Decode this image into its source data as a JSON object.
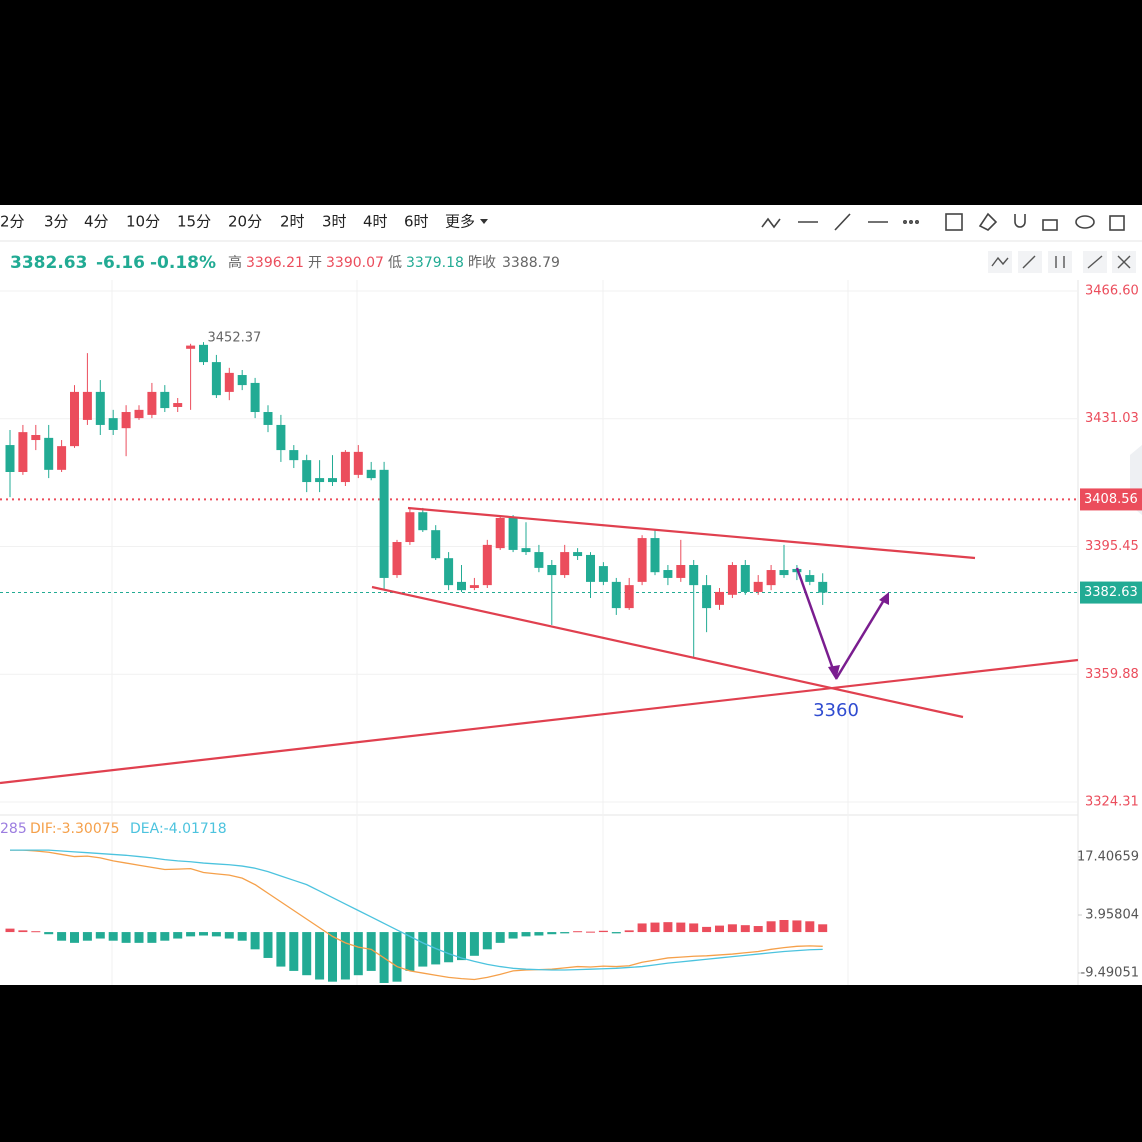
{
  "toolbar": {
    "intervals": [
      "2分",
      "3分",
      "4分",
      "10分",
      "15分",
      "20分",
      "2时",
      "3时",
      "4时",
      "6时",
      "更多"
    ]
  },
  "quote": {
    "price": "3382.63",
    "change": "-6.16",
    "percent": "-0.18%",
    "high_label": "高",
    "high": "3396.21",
    "open_label": "开",
    "open": "3390.07",
    "low_label": "低",
    "low": "3379.18",
    "prev_label": "昨收",
    "prev": "3388.79"
  },
  "chart_data": [
    {
      "type": "candlestick",
      "up_color": "#eb4d5c",
      "down_color": "#22ab94",
      "ylim": [
        3320.69,
        3469.66
      ],
      "yticks": [
        {
          "value": 3466.6,
          "label": "3466.60"
        },
        3431.03,
        3395.45,
        3359.88,
        3324.31
      ],
      "grid": true,
      "markers": [
        {
          "value": 3408.56,
          "color": "#eb4d5c"
        },
        {
          "value": 3382.63,
          "color": "#22ab94"
        }
      ],
      "annotation": "3360",
      "open": [
        3423.7,
        3416.2,
        3425.1,
        3425.7,
        3416.8,
        3423.4,
        3430.7,
        3438.5,
        3431.2,
        3428.4,
        3431.2,
        3432.1,
        3438.5,
        3434.3,
        3450.5,
        3451.6,
        3446.8,
        3438.5,
        3443.2,
        3441.0,
        3432.9,
        3429.3,
        3422.3,
        3419.5,
        3414.5,
        3414.5,
        3413.4,
        3415.4,
        3416.8,
        3416.8,
        3387.5,
        3396.7,
        3405.0,
        3400.0,
        3392.2,
        3385.6,
        3383.9,
        3384.7,
        3395.0,
        3403.4,
        3395.0,
        3393.9,
        3390.3,
        3387.5,
        3393.9,
        3393.1,
        3390.0,
        3385.6,
        3378.3,
        3385.6,
        3397.8,
        3388.9,
        3386.7,
        3390.3,
        3384.7,
        3379.2,
        3382.0,
        3390.3,
        3382.8,
        3384.7,
        3388.9,
        3389.2,
        3387.5,
        3385.6
      ],
      "high": [
        3427.9,
        3429.3,
        3429.3,
        3429.3,
        3425.1,
        3440.4,
        3449.3,
        3441.8,
        3433.5,
        3434.8,
        3434.8,
        3441.0,
        3440.4,
        3436.8,
        3451.9,
        3452.37,
        3448.8,
        3445.2,
        3444.6,
        3442.4,
        3434.8,
        3432.1,
        3423.7,
        3421.0,
        3419.5,
        3420.9,
        3422.3,
        3423.7,
        3419.0,
        3419.0,
        3397.3,
        3406.2,
        3406.2,
        3401.4,
        3393.9,
        3390.3,
        3386.7,
        3397.3,
        3404.2,
        3404.2,
        3402.2,
        3395.9,
        3391.7,
        3395.9,
        3395.0,
        3393.9,
        3391.1,
        3386.7,
        3386.7,
        3398.6,
        3400.0,
        3390.3,
        3397.3,
        3391.7,
        3387.5,
        3383.9,
        3391.1,
        3391.7,
        3387.5,
        3390.3,
        3395.9,
        3390.3,
        3388.9,
        3388.0
      ],
      "low": [
        3409.2,
        3415.4,
        3422.3,
        3414.5,
        3416.2,
        3422.9,
        3429.3,
        3426.5,
        3426.5,
        3420.6,
        3430.7,
        3431.2,
        3432.9,
        3432.9,
        3433.5,
        3446.0,
        3436.8,
        3436.2,
        3439.0,
        3431.2,
        3427.3,
        3419.0,
        3417.3,
        3410.6,
        3410.6,
        3412.3,
        3412.3,
        3414.5,
        3413.9,
        3383.3,
        3386.7,
        3395.9,
        3399.5,
        3391.7,
        3383.3,
        3382.8,
        3383.3,
        3383.9,
        3394.5,
        3393.9,
        3393.1,
        3388.3,
        3373.6,
        3386.7,
        3391.7,
        3381.1,
        3384.7,
        3376.4,
        3377.8,
        3384.7,
        3387.5,
        3384.7,
        3385.6,
        3364.4,
        3371.6,
        3377.8,
        3381.1,
        3382.0,
        3382.0,
        3383.3,
        3386.7,
        3386.1,
        3384.7,
        3379.18
      ],
      "close": [
        3416.2,
        3427.3,
        3426.5,
        3416.8,
        3423.4,
        3438.5,
        3438.5,
        3429.3,
        3427.9,
        3432.9,
        3433.5,
        3438.5,
        3434.0,
        3435.4,
        3451.4,
        3446.8,
        3437.6,
        3443.8,
        3440.4,
        3432.9,
        3429.3,
        3422.3,
        3419.5,
        3413.4,
        3413.4,
        3413.4,
        3421.8,
        3421.8,
        3414.5,
        3386.7,
        3396.7,
        3405.0,
        3400.0,
        3392.2,
        3384.7,
        3383.3,
        3384.7,
        3395.9,
        3403.4,
        3394.5,
        3393.9,
        3389.5,
        3387.5,
        3393.9,
        3392.8,
        3385.6,
        3385.6,
        3378.3,
        3384.7,
        3397.8,
        3388.3,
        3386.7,
        3390.3,
        3384.7,
        3378.3,
        3382.8,
        3390.3,
        3382.8,
        3385.6,
        3388.9,
        3387.5,
        3388.3,
        3385.6,
        3382.63
      ]
    },
    {
      "type": "macd",
      "ylim": [
        -12.27,
        27.14
      ],
      "yticks": [
        17.40659,
        3.95804,
        -9.49051
      ],
      "legend_labels": [
        "285",
        "DIF:-3.30075",
        "DEA:-4.01718"
      ],
      "legend_colors": [
        "#9c7de0",
        "#f5a04a",
        "#4cc3de"
      ],
      "up_color": "#eb4d5c",
      "down_color": "#22ab94",
      "histogram": [
        0.8,
        0.4,
        0.2,
        -0.5,
        -2,
        -2.5,
        -2,
        -1.5,
        -2,
        -2.5,
        -2.5,
        -2.5,
        -2,
        -1.5,
        -1,
        -0.8,
        -1,
        -1.5,
        -2,
        -4,
        -6,
        -8,
        -9,
        -10,
        -11,
        -11.5,
        -11,
        -10,
        -9,
        -11.8,
        -11.5,
        -9,
        -8,
        -7.5,
        -7,
        -6.5,
        -5.5,
        -4,
        -2.5,
        -1.5,
        -1,
        -0.8,
        -0.5,
        -0.3,
        0.2,
        0.1,
        0.3,
        -0.3,
        0.4,
        2,
        2.2,
        2.3,
        2.2,
        2,
        1.2,
        1.5,
        1.8,
        1.6,
        1.4,
        2.5,
        2.8,
        2.7,
        2.5,
        1.8
      ],
      "series": [
        {
          "name": "DIF",
          "color": "#f5a04a",
          "values": [
            19,
            19,
            18.8,
            18.5,
            18,
            17.5,
            17.6,
            17.2,
            16.5,
            16,
            15.5,
            15,
            14.5,
            14.6,
            14.7,
            13.8,
            13.5,
            13.2,
            12.5,
            11,
            9,
            7,
            5,
            3,
            1,
            -1,
            -2.5,
            -3.5,
            -4,
            -6,
            -8,
            -9,
            -9.5,
            -10,
            -10.5,
            -10.8,
            -11,
            -10.5,
            -9.8,
            -9,
            -8.8,
            -8.7,
            -8.6,
            -8.3,
            -8,
            -8.1,
            -7.9,
            -8,
            -7.8,
            -7,
            -6.5,
            -6,
            -5.8,
            -5.6,
            -5.5,
            -5.3,
            -5.1,
            -4.8,
            -4.5,
            -4,
            -3.6,
            -3.3,
            -3.2,
            -3.30075
          ]
        },
        {
          "name": "DEA",
          "color": "#4cc3de",
          "values": [
            19,
            19,
            19,
            19,
            18.8,
            18.6,
            18.4,
            18.2,
            18,
            17.8,
            17.5,
            17.2,
            16.8,
            16.5,
            16.3,
            16,
            15.8,
            15.6,
            15.3,
            14.8,
            14,
            13,
            12,
            11,
            9.5,
            8,
            6.5,
            5,
            3.5,
            2,
            0.5,
            -1,
            -2.5,
            -3.8,
            -5,
            -6,
            -6.8,
            -7.5,
            -8,
            -8.4,
            -8.6,
            -8.7,
            -8.8,
            -8.8,
            -8.7,
            -8.6,
            -8.5,
            -8.4,
            -8.2,
            -8,
            -7.6,
            -7.2,
            -6.9,
            -6.6,
            -6.3,
            -6,
            -5.7,
            -5.4,
            -5.1,
            -4.8,
            -4.5,
            -4.3,
            -4.1,
            -4.01718
          ]
        }
      ]
    }
  ]
}
